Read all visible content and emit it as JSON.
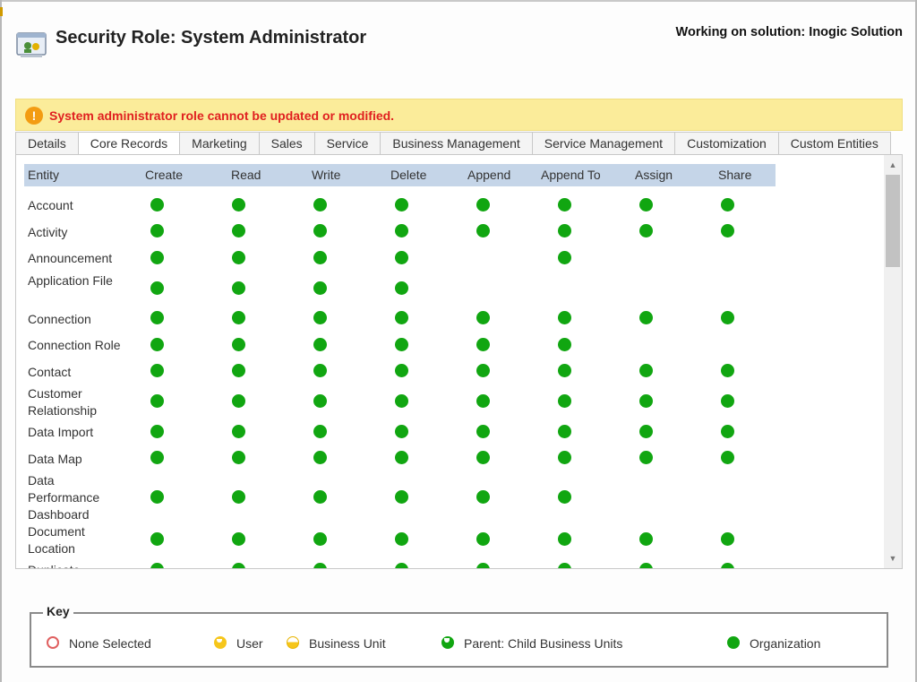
{
  "page": {
    "title": "Security Role: System Administrator",
    "solution": "Working on solution: Inogic Solution",
    "icon": "security-role-icon"
  },
  "notification": {
    "icon": "warning-icon",
    "text": "System administrator role cannot be updated or modified."
  },
  "tabs": [
    {
      "label": "Details",
      "active": false
    },
    {
      "label": "Core Records",
      "active": true
    },
    {
      "label": "Marketing",
      "active": false
    },
    {
      "label": "Sales",
      "active": false
    },
    {
      "label": "Service",
      "active": false
    },
    {
      "label": "Business Management",
      "active": false
    },
    {
      "label": "Service Management",
      "active": false
    },
    {
      "label": "Customization",
      "active": false
    },
    {
      "label": "Custom Entities",
      "active": false
    }
  ],
  "grid": {
    "columns": [
      "Entity",
      "Create",
      "Read",
      "Write",
      "Delete",
      "Append",
      "Append To",
      "Assign",
      "Share"
    ],
    "rows": [
      {
        "entity": "Account",
        "perms": [
          1,
          1,
          1,
          1,
          1,
          1,
          1,
          1
        ]
      },
      {
        "entity": "Activity",
        "perms": [
          1,
          1,
          1,
          1,
          1,
          1,
          1,
          1
        ]
      },
      {
        "entity": "Announcement",
        "perms": [
          1,
          1,
          1,
          1,
          0,
          1,
          0,
          0
        ]
      },
      {
        "entity": "Application File",
        "perms": [
          1,
          1,
          1,
          1,
          0,
          0,
          0,
          0
        ]
      },
      {
        "entity": "Connection",
        "perms": [
          1,
          1,
          1,
          1,
          1,
          1,
          1,
          1
        ]
      },
      {
        "entity": "Connection Role",
        "perms": [
          1,
          1,
          1,
          1,
          1,
          1,
          0,
          0
        ]
      },
      {
        "entity": "Contact",
        "perms": [
          1,
          1,
          1,
          1,
          1,
          1,
          1,
          1
        ]
      },
      {
        "entity": "Customer Relationship",
        "perms": [
          1,
          1,
          1,
          1,
          1,
          1,
          1,
          1
        ]
      },
      {
        "entity": "Data Import",
        "perms": [
          1,
          1,
          1,
          1,
          1,
          1,
          1,
          1
        ]
      },
      {
        "entity": "Data Map",
        "perms": [
          1,
          1,
          1,
          1,
          1,
          1,
          1,
          1
        ]
      },
      {
        "entity": "Data Performance Dashboard",
        "perms": [
          1,
          1,
          1,
          1,
          1,
          1,
          0,
          0
        ]
      },
      {
        "entity": "Document Location",
        "perms": [
          1,
          1,
          1,
          1,
          1,
          1,
          1,
          1
        ]
      },
      {
        "entity": "Duplicate",
        "perms": [
          1,
          1,
          1,
          1,
          1,
          1,
          1,
          1
        ]
      }
    ]
  },
  "key": {
    "title": "Key",
    "items": [
      {
        "label": "None Selected",
        "icon": "none-selected-icon"
      },
      {
        "label": "User",
        "icon": "user-level-icon"
      },
      {
        "label": "Business Unit",
        "icon": "business-unit-level-icon"
      },
      {
        "label": "Parent: Child Business Units",
        "icon": "parent-child-bu-level-icon"
      },
      {
        "label": "Organization",
        "icon": "organization-level-icon"
      }
    ]
  },
  "colors": {
    "organization_dot": "#11a611",
    "notification_bg": "#fbec9a",
    "notification_text": "#e02020",
    "grid_header_bg": "#c5d5e8"
  }
}
